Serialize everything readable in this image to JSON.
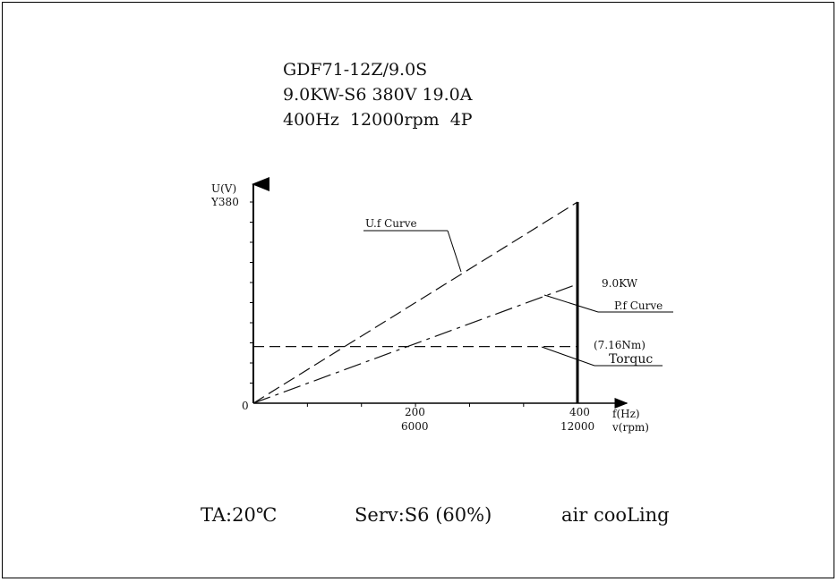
{
  "header": {
    "model": "GDF71-12Z/9.0S",
    "rating": "9.0KW-S6 380V 19.0A",
    "speed": "400Hz  12000rpm  4P"
  },
  "chart_data": {
    "type": "line",
    "y_axis_label": "U(V)",
    "y_max_label": "Y380",
    "origin_label": "0",
    "x_tick_labels": [
      {
        "freq": "200",
        "rpm": "6000"
      },
      {
        "freq": "400",
        "rpm": "12000"
      }
    ],
    "x_axis_label_freq": "f(Hz)",
    "x_axis_label_rpm": "v(rpm)",
    "x_range": [
      0,
      400
    ],
    "y_range": [
      0,
      380
    ],
    "series": [
      {
        "name": "U.f Curve",
        "x": [
          0,
          400
        ],
        "y": [
          0,
          380
        ]
      },
      {
        "name": "P.f Curve",
        "x": [
          0,
          400
        ],
        "y": [
          0,
          225
        ]
      },
      {
        "name": "Torquc",
        "x": [
          0,
          400
        ],
        "y": [
          107,
          107
        ]
      }
    ],
    "annotations": {
      "uf": "U.f Curve",
      "power": "9.0KW",
      "pf": "P.f Curve",
      "torque_value": "(7.16Nm)",
      "torque": "Torquc"
    }
  },
  "footer": {
    "ambient": "TA:20℃",
    "duty": "Serv:S6 (60%)",
    "cooling": "air cooLing"
  }
}
